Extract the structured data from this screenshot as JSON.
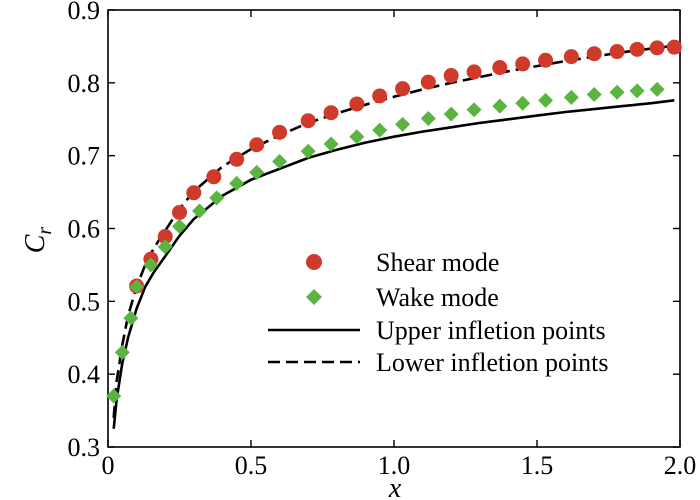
{
  "chart_data": {
    "type": "scatter",
    "title": "",
    "xlabel": "x",
    "ylabel": "C",
    "ylabel_subscript": "r",
    "xlim": [
      0.0,
      2.0
    ],
    "ylim": [
      0.3,
      0.9
    ],
    "xticks": [
      "0",
      "0.5",
      "1.0",
      "1.5",
      "2.0"
    ],
    "xtick_values": [
      0,
      0.5,
      1.0,
      1.5,
      2.0
    ],
    "yticks": [
      "0.3",
      "0.4",
      "0.5",
      "0.6",
      "0.7",
      "0.8",
      "0.9"
    ],
    "ytick_values": [
      0.3,
      0.4,
      0.5,
      0.6,
      0.7,
      0.8,
      0.9
    ],
    "grid": false,
    "legend_position": "center-right",
    "series": [
      {
        "name": "Shear mode",
        "kind": "scatter",
        "marker": "circle",
        "color": "#d03a2a",
        "x": [
          0.1,
          0.15,
          0.2,
          0.25,
          0.3,
          0.37,
          0.45,
          0.52,
          0.6,
          0.7,
          0.78,
          0.87,
          0.95,
          1.03,
          1.12,
          1.2,
          1.28,
          1.37,
          1.45,
          1.53,
          1.62,
          1.7,
          1.78,
          1.85,
          1.92,
          1.98
        ],
        "y": [
          0.521,
          0.558,
          0.589,
          0.622,
          0.649,
          0.671,
          0.695,
          0.715,
          0.732,
          0.748,
          0.759,
          0.771,
          0.782,
          0.792,
          0.801,
          0.81,
          0.815,
          0.821,
          0.826,
          0.831,
          0.836,
          0.84,
          0.843,
          0.846,
          0.848,
          0.849
        ]
      },
      {
        "name": "Wake mode",
        "kind": "scatter",
        "marker": "diamond",
        "color": "#5ab440",
        "x": [
          0.02,
          0.05,
          0.08,
          0.1,
          0.15,
          0.2,
          0.25,
          0.32,
          0.38,
          0.45,
          0.52,
          0.6,
          0.7,
          0.78,
          0.87,
          0.95,
          1.03,
          1.12,
          1.2,
          1.28,
          1.37,
          1.45,
          1.53,
          1.62,
          1.7,
          1.78,
          1.85,
          1.92
        ],
        "y": [
          0.37,
          0.43,
          0.477,
          0.52,
          0.55,
          0.575,
          0.603,
          0.624,
          0.642,
          0.662,
          0.677,
          0.692,
          0.706,
          0.716,
          0.726,
          0.735,
          0.743,
          0.751,
          0.757,
          0.763,
          0.768,
          0.772,
          0.776,
          0.78,
          0.784,
          0.787,
          0.789,
          0.791
        ]
      },
      {
        "name": "Upper infletion points",
        "kind": "line",
        "dash": "solid",
        "color": "#000000",
        "x": [
          0.02,
          0.03,
          0.05,
          0.07,
          0.1,
          0.13,
          0.16,
          0.2,
          0.25,
          0.3,
          0.4,
          0.5,
          0.6,
          0.7,
          0.8,
          0.9,
          1.0,
          1.1,
          1.2,
          1.3,
          1.4,
          1.5,
          1.6,
          1.7,
          1.8,
          1.9,
          1.98
        ],
        "y": [
          0.325,
          0.365,
          0.415,
          0.45,
          0.49,
          0.52,
          0.54,
          0.562,
          0.59,
          0.613,
          0.645,
          0.667,
          0.682,
          0.697,
          0.708,
          0.718,
          0.726,
          0.733,
          0.739,
          0.745,
          0.75,
          0.755,
          0.76,
          0.764,
          0.768,
          0.772,
          0.776
        ]
      },
      {
        "name": "Lower infletion points",
        "kind": "line",
        "dash": "dashed",
        "color": "#000000",
        "x": [
          0.02,
          0.03,
          0.05,
          0.07,
          0.1,
          0.13,
          0.16,
          0.2,
          0.25,
          0.3,
          0.4,
          0.5,
          0.6,
          0.7,
          0.8,
          0.9,
          1.0,
          1.1,
          1.2,
          1.3,
          1.4,
          1.5,
          1.6,
          1.7,
          1.8,
          1.9,
          1.98
        ],
        "y": [
          0.34,
          0.39,
          0.44,
          0.48,
          0.52,
          0.55,
          0.573,
          0.597,
          0.627,
          0.651,
          0.685,
          0.709,
          0.728,
          0.745,
          0.758,
          0.77,
          0.781,
          0.791,
          0.8,
          0.808,
          0.816,
          0.823,
          0.83,
          0.836,
          0.842,
          0.847,
          0.851
        ]
      }
    ]
  }
}
